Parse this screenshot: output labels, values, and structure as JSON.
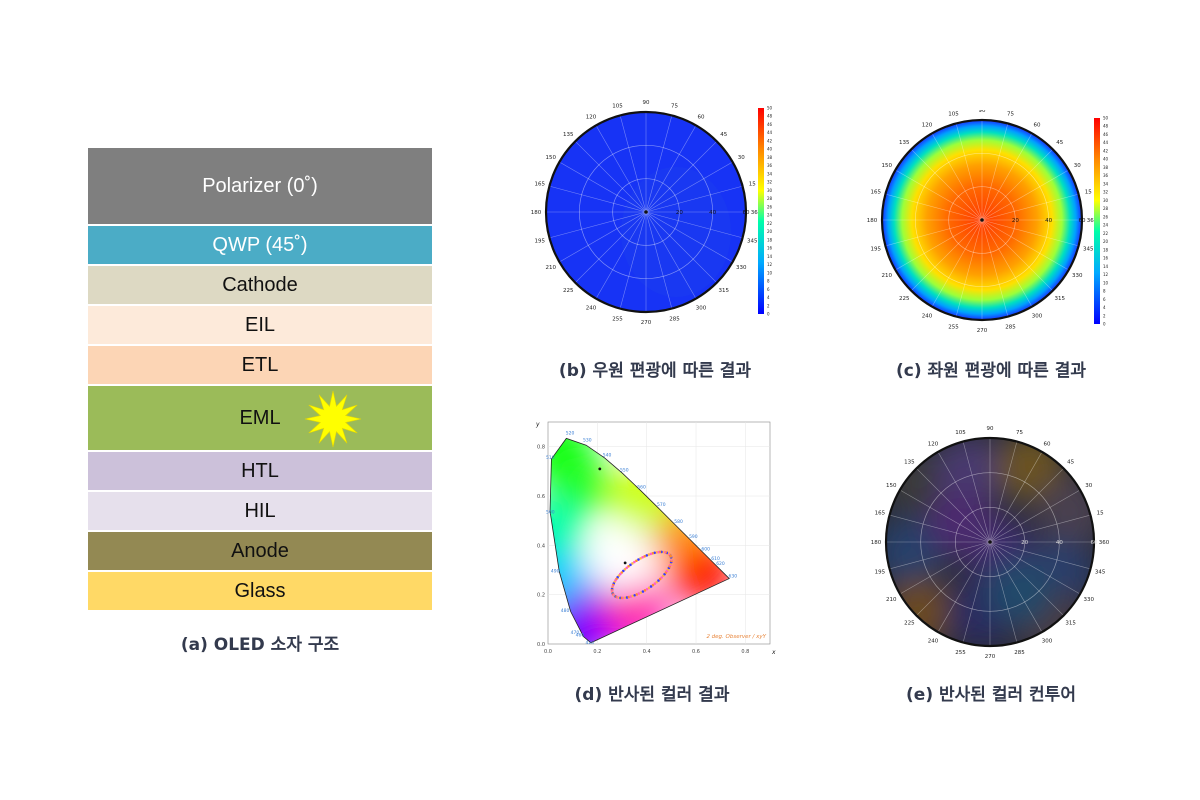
{
  "structure": {
    "caption": "(a) OLED 소자 구조",
    "layers": [
      {
        "label": "Polarizer (0˚)",
        "color": "#7f7f7f",
        "text_color": "#ffffff",
        "height": 78
      },
      {
        "label": "QWP (45˚)",
        "color": "#4bacc6",
        "text_color": "#ffffff",
        "height": 40
      },
      {
        "label": "Cathode",
        "color": "#ddd9c3",
        "text_color": "#111111",
        "height": 40
      },
      {
        "label": "EIL",
        "color": "#fdeada",
        "text_color": "#111111",
        "height": 40
      },
      {
        "label": "ETL",
        "color": "#fcd5b5",
        "text_color": "#111111",
        "height": 40
      },
      {
        "label": "EML",
        "color": "#9bbb59",
        "text_color": "#111111",
        "height": 66
      },
      {
        "label": "HTL",
        "color": "#ccc1da",
        "text_color": "#111111",
        "height": 40
      },
      {
        "label": "HIL",
        "color": "#e6e0ec",
        "text_color": "#111111",
        "height": 40
      },
      {
        "label": "Anode",
        "color": "#938953",
        "text_color": "#111111",
        "height": 40
      },
      {
        "label": "Glass",
        "color": "#ffd966",
        "text_color": "#111111",
        "height": 40
      }
    ],
    "emission_icon": "starburst-icon"
  },
  "polar_b": {
    "caption": "(b) 우원 편광에 따른 결과",
    "angle_labels": [
      "90",
      "75",
      "60",
      "45",
      "30",
      "15",
      "360",
      "345",
      "330",
      "315",
      "300",
      "285",
      "270",
      "255",
      "240",
      "225",
      "210",
      "195",
      "180",
      "165",
      "150",
      "135",
      "120",
      "105"
    ],
    "radial_labels": [
      "20",
      "40",
      "60"
    ],
    "colorbar_labels": [
      "50",
      "48",
      "46",
      "44",
      "42",
      "40",
      "38",
      "36",
      "34",
      "32",
      "30",
      "28",
      "26",
      "24",
      "22",
      "20",
      "18",
      "16",
      "14",
      "12",
      "10",
      "8",
      "6",
      "4",
      "2",
      "0"
    ]
  },
  "polar_c": {
    "caption": "(c) 좌원 편광에 따른 결과",
    "angle_labels": [
      "90",
      "75",
      "60",
      "45",
      "30",
      "15",
      "360",
      "345",
      "330",
      "315",
      "300",
      "285",
      "270",
      "255",
      "240",
      "225",
      "210",
      "195",
      "180",
      "165",
      "150",
      "135",
      "120",
      "105"
    ],
    "radial_labels": [
      "20",
      "40",
      "60"
    ],
    "colorbar_labels": [
      "50",
      "48",
      "46",
      "44",
      "42",
      "40",
      "38",
      "36",
      "34",
      "32",
      "30",
      "28",
      "26",
      "24",
      "22",
      "20",
      "18",
      "16",
      "14",
      "12",
      "10",
      "8",
      "6",
      "4",
      "2",
      "0"
    ]
  },
  "cie": {
    "caption": "(d) 반사된 컬러 결과",
    "xlabel": "x",
    "ylabel": "y",
    "x_ticks": [
      "0.0",
      "0.2",
      "0.4",
      "0.6",
      "0.8"
    ],
    "y_ticks": [
      "0.0",
      "0.2",
      "0.4",
      "0.6",
      "0.8"
    ],
    "wavelength_labels": [
      "520",
      "530",
      "510",
      "540",
      "550",
      "560",
      "500",
      "570",
      "580",
      "590",
      "600",
      "610",
      "620",
      "630",
      "490",
      "480",
      "470",
      "460",
      "420"
    ],
    "annotation": "2 deg. Observer / xyY"
  },
  "polar_e": {
    "caption": "(e) 반사된 컬러 컨투어",
    "angle_labels": [
      "90",
      "75",
      "60",
      "45",
      "30",
      "15",
      "360",
      "345",
      "330",
      "315",
      "300",
      "285",
      "270",
      "255",
      "240",
      "225",
      "210",
      "195",
      "180",
      "165",
      "150",
      "135",
      "120",
      "105"
    ],
    "radial_labels": [
      "20",
      "40",
      "60"
    ]
  }
}
